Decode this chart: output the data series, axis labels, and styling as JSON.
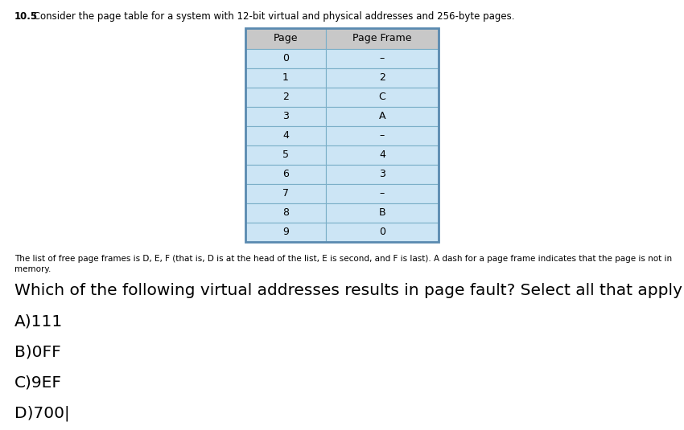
{
  "title_number": "10.5",
  "title_text": " Consider the page table for a system with 12-bit virtual and physical addresses and 256-byte pages.",
  "table_header": [
    "Page",
    "Page Frame"
  ],
  "table_rows": [
    [
      "0",
      "–"
    ],
    [
      "1",
      "2"
    ],
    [
      "2",
      "C"
    ],
    [
      "3",
      "A"
    ],
    [
      "4",
      "–"
    ],
    [
      "5",
      "4"
    ],
    [
      "6",
      "3"
    ],
    [
      "7",
      "–"
    ],
    [
      "8",
      "B"
    ],
    [
      "9",
      "0"
    ]
  ],
  "table_header_bg": "#c8c8c8",
  "table_row_bg": "#cce5f5",
  "table_border_color": "#7bafc8",
  "table_outer_border": "#5a8ab0",
  "description_line1": "The list of free page frames is D, E, F (that is, D is at the head of the list, E is second, and F is last). A dash for a page frame indicates that the page is not in",
  "description_line2": "memory.",
  "question": "Which of the following virtual addresses results in page fault? Select all that apply",
  "options": [
    "A)111",
    "B)0FF",
    "C)9EF",
    "D)700|"
  ],
  "bg_color": "#ffffff",
  "text_color": "#000000",
  "title_fontsize": 8.5,
  "table_fontsize": 9,
  "desc_fontsize": 7.5,
  "question_fontsize": 14.5,
  "option_fontsize": 14.5
}
